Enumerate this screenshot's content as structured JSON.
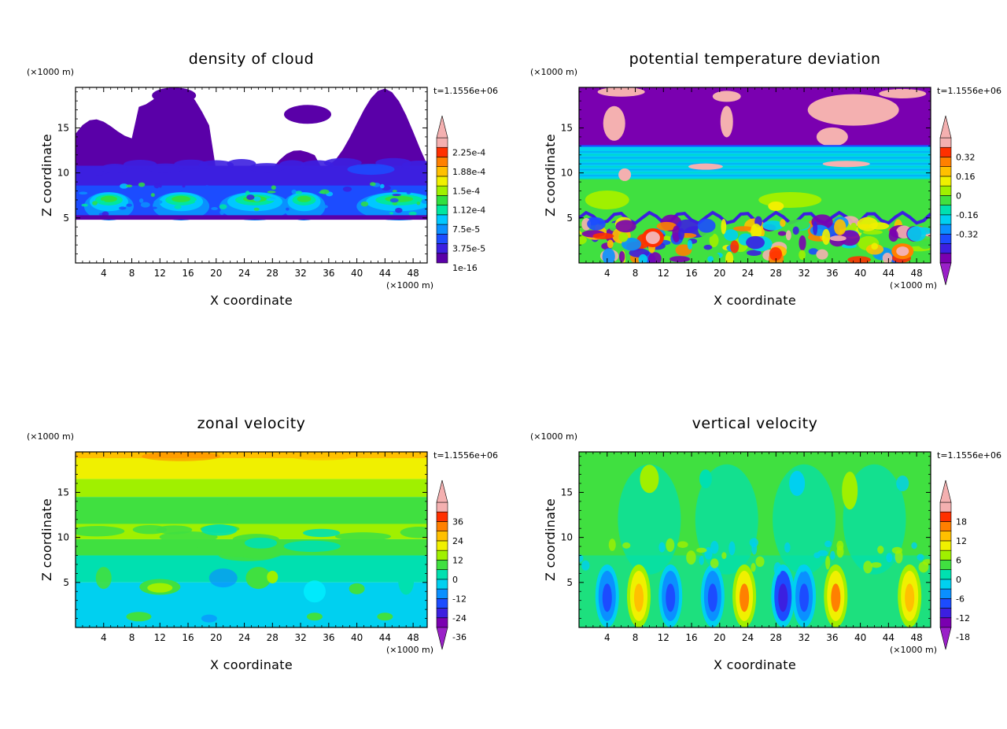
{
  "figure": {
    "background": "#ffffff"
  },
  "chart_data": [
    {
      "type": "heatmap",
      "title": "density of cloud",
      "xlabel": "X coordinate",
      "ylabel": "Z coordinate",
      "x_unit": "(×1000 m)",
      "y_unit": "(×1000 m)",
      "time_label": "t=1.1556e+06",
      "xlim": [
        0,
        50
      ],
      "ylim": [
        0,
        19.5
      ],
      "x_ticks": [
        "4",
        "8",
        "12",
        "16",
        "20",
        "24",
        "28",
        "32",
        "36",
        "40",
        "44",
        "48"
      ],
      "y_ticks": [
        "5",
        "10",
        "15"
      ],
      "colorbar": {
        "labels": [
          "2.25e-4",
          "1.88e-4",
          "1.5e-4",
          "1.12e-4",
          "7.5e-5",
          "3.75e-5",
          "1e-16"
        ],
        "colors": [
          "#5a00a8",
          "#3c1fe0",
          "#1c4cff",
          "#0a90ff",
          "#00c8ff",
          "#00e6a0",
          "#30e040",
          "#a0f000",
          "#f0f000",
          "#ffc000",
          "#ff8000",
          "#ff3000",
          "#f4b0b0"
        ],
        "end_arrows": "top"
      },
      "field_ranges": {
        "cloud_base_km": [
          5,
          5.5
        ],
        "cloud_top_km": [
          8.5,
          19.5
        ]
      }
    },
    {
      "type": "heatmap",
      "title": "potential temperature deviation",
      "xlabel": "X coordinate",
      "ylabel": "Z coordinate",
      "x_unit": "(×1000 m)",
      "y_unit": "(×1000 m)",
      "time_label": "t=1.1556e+06",
      "xlim": [
        0,
        50
      ],
      "ylim": [
        0,
        19.5
      ],
      "x_ticks": [
        "4",
        "8",
        "12",
        "16",
        "20",
        "24",
        "28",
        "32",
        "36",
        "40",
        "44",
        "48"
      ],
      "y_ticks": [
        "5",
        "10",
        "15"
      ],
      "colorbar": {
        "labels": [
          "0.32",
          "0.16",
          "0",
          "-0.16",
          "-0.32"
        ],
        "colors": [
          "#7a00b0",
          "#3c1fe0",
          "#1c4cff",
          "#0a90ff",
          "#00d0f0",
          "#00e0b0",
          "#40e040",
          "#a0f000",
          "#f0f000",
          "#ffc000",
          "#ff8000",
          "#ff3000",
          "#f4b0b0"
        ],
        "end_arrows": "both"
      }
    },
    {
      "type": "heatmap",
      "title": "zonal velocity",
      "xlabel": "X coordinate",
      "ylabel": "Z coordinate",
      "x_unit": "(×1000 m)",
      "y_unit": "(×1000 m)",
      "time_label": "t=1.1556e+06",
      "xlim": [
        0,
        50
      ],
      "ylim": [
        0,
        19.5
      ],
      "x_ticks": [
        "4",
        "8",
        "12",
        "16",
        "20",
        "24",
        "28",
        "32",
        "36",
        "40",
        "44",
        "48"
      ],
      "y_ticks": [
        "5",
        "10",
        "15"
      ],
      "colorbar": {
        "labels": [
          "36",
          "24",
          "12",
          "0",
          "-12",
          "-24",
          "-36"
        ],
        "colors": [
          "#7a00b0",
          "#3c1fe0",
          "#1c4cff",
          "#0a90ff",
          "#00d0f0",
          "#00e0b0",
          "#40e040",
          "#a0f000",
          "#f0f000",
          "#ffc000",
          "#ff8000",
          "#ff3000",
          "#f4b0b0"
        ],
        "end_arrows": "both"
      }
    },
    {
      "type": "heatmap",
      "title": "vertical velocity",
      "xlabel": "X coordinate",
      "ylabel": "Z coordinate",
      "x_unit": "(×1000 m)",
      "y_unit": "(×1000 m)",
      "time_label": "t=1.1556e+06",
      "xlim": [
        0,
        50
      ],
      "ylim": [
        0,
        19.5
      ],
      "x_ticks": [
        "4",
        "8",
        "12",
        "16",
        "20",
        "24",
        "28",
        "32",
        "36",
        "40",
        "44",
        "48"
      ],
      "y_ticks": [
        "5",
        "10",
        "15"
      ],
      "colorbar": {
        "labels": [
          "18",
          "12",
          "6",
          "0",
          "-6",
          "-12",
          "-18"
        ],
        "colors": [
          "#7a00b0",
          "#3c1fe0",
          "#1c4cff",
          "#0a90ff",
          "#00d0f0",
          "#00e0b0",
          "#40e040",
          "#a0f000",
          "#f0f000",
          "#ffc000",
          "#ff8000",
          "#ff3000",
          "#f4b0b0"
        ],
        "end_arrows": "both"
      }
    }
  ]
}
